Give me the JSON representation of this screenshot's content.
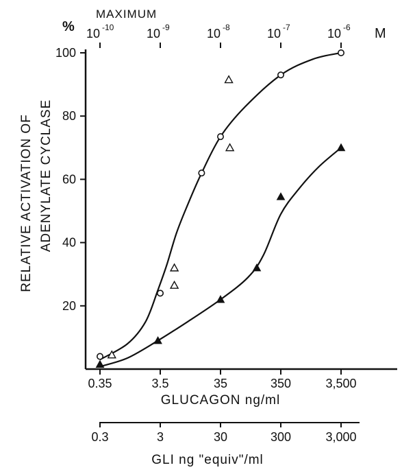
{
  "chart_data": {
    "type": "scatter",
    "title": "",
    "ylabel_lines": [
      "RELATIVE ACTIVATION OF",
      "ADENYLATE CYCLASE"
    ],
    "ylim": [
      0,
      100
    ],
    "y_ticks": [
      {
        "value": 20,
        "label": "20"
      },
      {
        "value": 40,
        "label": "40"
      },
      {
        "value": 60,
        "label": "60"
      },
      {
        "value": 80,
        "label": "80"
      },
      {
        "value": 100,
        "label": "100"
      }
    ],
    "x_scale": "log",
    "xlim": [
      0.25,
      14000
    ],
    "xlabel": "GLUCAGON ng/ml",
    "x_ticks": [
      {
        "value": 0.35,
        "label": "0.35"
      },
      {
        "value": 3.5,
        "label": "3.5"
      },
      {
        "value": 35,
        "label": "35"
      },
      {
        "value": 350,
        "label": "350"
      },
      {
        "value": 3500,
        "label": "3,500"
      }
    ],
    "top_axis": {
      "unit_left": "%",
      "note": "MAXIMUM",
      "unit_right": "M",
      "ticks": [
        {
          "x": 0.35,
          "base": "10",
          "exp": "-10"
        },
        {
          "x": 3.5,
          "base": "10",
          "exp": "-9"
        },
        {
          "x": 35,
          "base": "10",
          "exp": "-8"
        },
        {
          "x": 350,
          "base": "10",
          "exp": "-7"
        },
        {
          "x": 3500,
          "base": "10",
          "exp": "-6"
        }
      ]
    },
    "second_axis": {
      "label": "GLI ng \"equiv\"/ml",
      "ticks": [
        {
          "x": 0.35,
          "label": "0.3"
        },
        {
          "x": 3.5,
          "label": "3"
        },
        {
          "x": 35,
          "label": "30"
        },
        {
          "x": 350,
          "label": "300"
        },
        {
          "x": 3500,
          "label": "3,000"
        }
      ]
    },
    "series": [
      {
        "marker": "open-circle",
        "points": [
          [
            0.35,
            4
          ],
          [
            3.5,
            24
          ],
          [
            17,
            62
          ],
          [
            35,
            73.5
          ],
          [
            350,
            93
          ],
          [
            3500,
            100
          ]
        ],
        "curve": [
          [
            0.35,
            3
          ],
          [
            1.0,
            8
          ],
          [
            2.0,
            15
          ],
          [
            3.2,
            25
          ],
          [
            4.5,
            33
          ],
          [
            6.5,
            43
          ],
          [
            10,
            52
          ],
          [
            17,
            62
          ],
          [
            35,
            73.5
          ],
          [
            90,
            83
          ],
          [
            350,
            93
          ],
          [
            1200,
            98
          ],
          [
            3500,
            100
          ]
        ]
      },
      {
        "marker": "open-triangle",
        "points": [
          [
            0.55,
            4.5
          ],
          [
            6.0,
            32
          ],
          [
            6.0,
            26.5
          ],
          [
            48,
            91.5
          ],
          [
            50,
            70
          ]
        ]
      },
      {
        "marker": "filled-triangle",
        "points": [
          [
            0.35,
            1.5
          ],
          [
            3.2,
            9
          ],
          [
            35,
            22
          ],
          [
            140,
            32
          ],
          [
            350,
            54.5
          ],
          [
            3500,
            70
          ]
        ],
        "curve": [
          [
            0.35,
            0.8
          ],
          [
            1.0,
            3.5
          ],
          [
            3.2,
            9
          ],
          [
            10,
            15
          ],
          [
            35,
            22
          ],
          [
            100,
            29
          ],
          [
            180,
            36
          ],
          [
            350,
            49
          ],
          [
            700,
            57
          ],
          [
            1500,
            64
          ],
          [
            3500,
            70
          ]
        ]
      }
    ]
  }
}
